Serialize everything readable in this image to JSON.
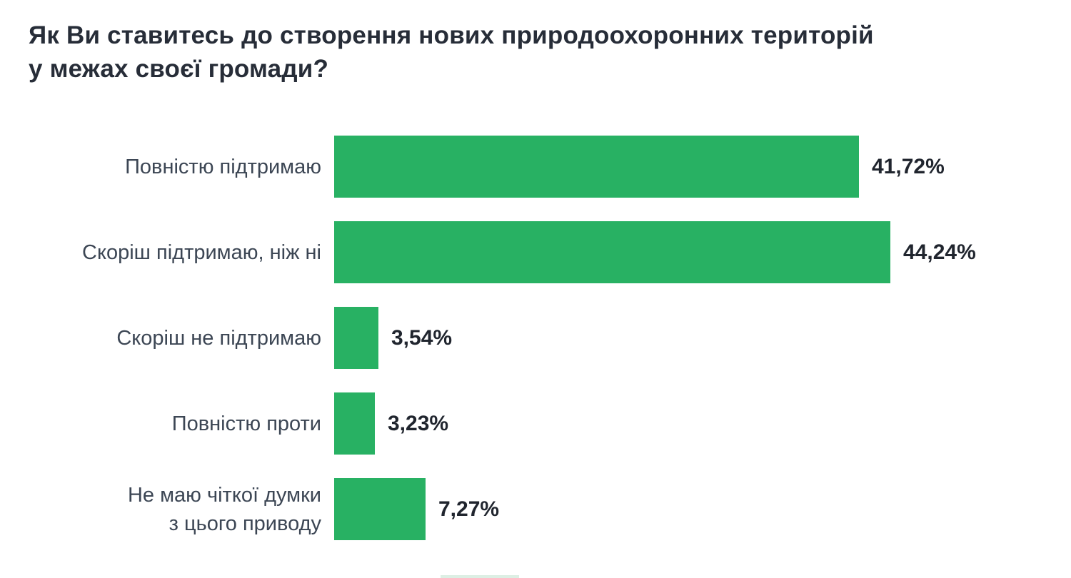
{
  "title": {
    "line1": "Як Ви ставитесь до створення нових природоохоронних територій",
    "line2": "у межах своєї громади?"
  },
  "chart_data": {
    "type": "bar",
    "orientation": "horizontal",
    "title": "Як Ви ставитесь до створення нових природоохоронних територій у межах своєї громади?",
    "categories": [
      "Повністю підтримаю",
      "Скоріш підтримаю, ніж ні",
      "Скоріш не підтримаю",
      "Повністю проти",
      "Не маю чіткої думки\nз цього приводу"
    ],
    "values": [
      41.72,
      44.24,
      3.54,
      3.23,
      7.27
    ],
    "value_labels": [
      "41,72%",
      "44,24%",
      "3,54%",
      "3,23%",
      "7,27%"
    ],
    "unit": "%",
    "bar_color": "#28b163",
    "label_color": "#3c4654",
    "value_color": "#20252e",
    "title_color": "#272d38",
    "xlim": [
      0,
      50
    ],
    "grid": false,
    "legend": false,
    "axis_ticks_visible": false
  }
}
